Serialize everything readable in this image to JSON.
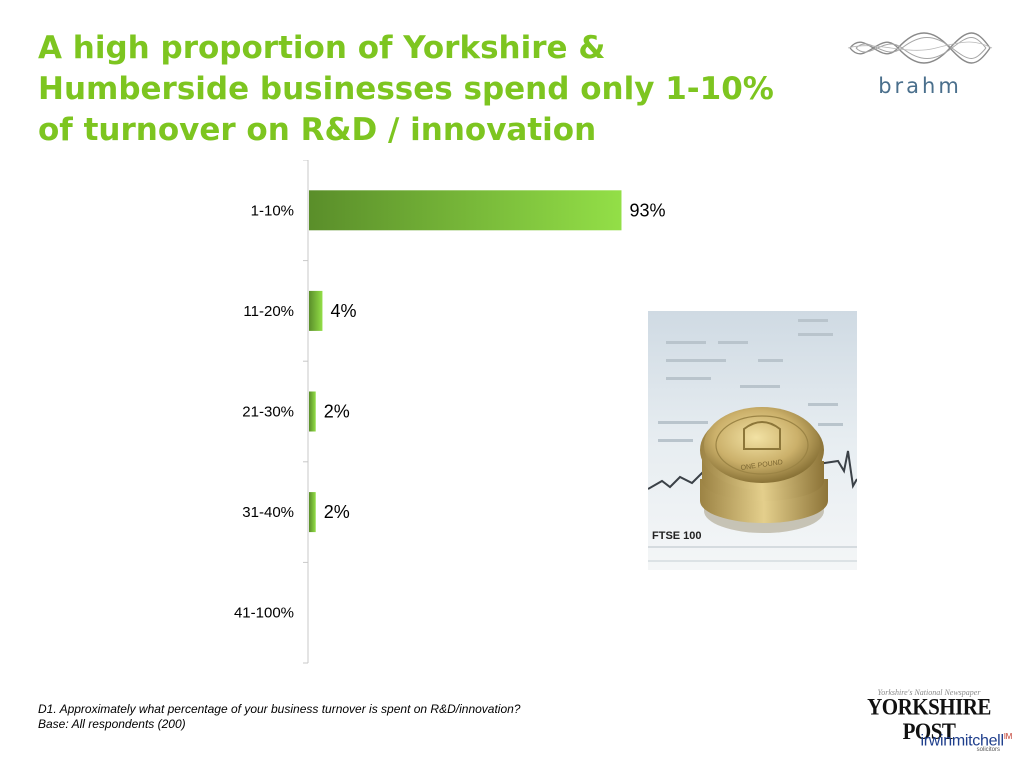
{
  "slide": {
    "title": "A high proportion of Yorkshire & Humberside businesses spend only 1-10% of turnover on R&D / innovation"
  },
  "logos": {
    "brahm": "brahm",
    "yorkshire_post_tagline": "Yorkshire's National Newspaper",
    "yorkshire_post": "YORKSHIRE POST",
    "irwin_mitchell": "irwinmitchell",
    "irwin_mitchell_mark": "IM",
    "irwin_mitchell_sub": "solicitors"
  },
  "photo": {
    "caption": "FTSE 100",
    "coin_text": "ONE POUND"
  },
  "footnote": {
    "question": "D1. Approximately what percentage of your business turnover is spent on R&D/innovation?",
    "base": "Base: All respondents (200)"
  },
  "chart_data": {
    "type": "bar",
    "orientation": "horizontal",
    "categories": [
      "1-10%",
      "11-20%",
      "21-30%",
      "31-40%",
      "41-100%"
    ],
    "values": [
      93,
      4,
      2,
      2,
      null
    ],
    "data_labels": [
      "93%",
      "4%",
      "2%",
      "2%",
      ""
    ],
    "xlim": [
      0,
      100
    ],
    "grid": false,
    "legend": "none",
    "colors": {
      "bar_dark": "#5a8e2a",
      "bar_light": "#93df47",
      "axis": "#c8c8c8"
    }
  }
}
